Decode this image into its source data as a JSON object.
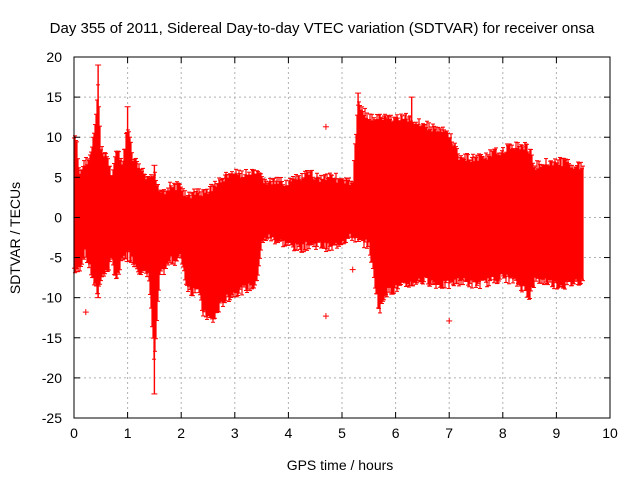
{
  "chart_data": {
    "type": "scatter",
    "title": "Day 355 of 2011, Sidereal Day-to-day VTEC variation (SDTVAR) for receiver onsa",
    "xlabel": "GPS time / hours",
    "ylabel": "SDTVAR / TECUs",
    "xlim": [
      0,
      10
    ],
    "ylim": [
      -25,
      20
    ],
    "xticks": [
      0,
      1,
      2,
      3,
      4,
      5,
      6,
      7,
      8,
      9,
      10
    ],
    "yticks": [
      -25,
      -20,
      -15,
      -10,
      -5,
      0,
      5,
      10,
      15,
      20
    ],
    "grid": true,
    "marker": "+",
    "color": "#ff0000",
    "series": [
      {
        "name": "SDTVAR",
        "envelope_x": [
          0.0,
          0.05,
          0.1,
          0.2,
          0.3,
          0.4,
          0.45,
          0.5,
          0.6,
          0.7,
          0.8,
          0.9,
          1.0,
          1.1,
          1.2,
          1.3,
          1.4,
          1.5,
          1.6,
          1.7,
          1.8,
          1.9,
          2.0,
          2.1,
          2.2,
          2.3,
          2.4,
          2.5,
          2.6,
          2.7,
          2.8,
          2.9,
          3.0,
          3.2,
          3.4,
          3.5,
          3.6,
          3.8,
          4.0,
          4.2,
          4.4,
          4.6,
          4.8,
          5.0,
          5.2,
          5.3,
          5.5,
          5.7,
          5.8,
          6.0,
          6.2,
          6.4,
          6.6,
          6.8,
          7.0,
          7.2,
          7.5,
          7.8,
          8.0,
          8.2,
          8.4,
          8.5,
          8.6,
          8.8,
          9.0,
          9.2,
          9.4,
          9.5
        ],
        "envelope_upper": [
          10.5,
          10.0,
          6.0,
          7.5,
          8.0,
          12.0,
          17.5,
          9.0,
          8.5,
          6.0,
          9.0,
          7.0,
          12.0,
          8.0,
          7.0,
          6.0,
          5.0,
          6.0,
          4.0,
          4.0,
          4.5,
          4.5,
          4.5,
          3.0,
          3.5,
          4.0,
          3.5,
          4.0,
          4.5,
          5.0,
          5.5,
          6.0,
          6.0,
          6.0,
          6.0,
          5.5,
          5.0,
          5.0,
          5.0,
          5.5,
          6.0,
          5.5,
          6.0,
          5.0,
          5.0,
          15.0,
          13.0,
          13.0,
          13.0,
          13.0,
          13.0,
          12.5,
          12.0,
          11.5,
          11.0,
          8.0,
          8.0,
          8.5,
          9.0,
          9.5,
          9.5,
          9.0,
          7.0,
          7.5,
          7.5,
          7.5,
          7.0,
          7.0
        ],
        "envelope_lower": [
          -7.0,
          -7.5,
          -7.0,
          -5.0,
          -7.0,
          -9.5,
          -10.0,
          -8.0,
          -7.5,
          -6.0,
          -8.5,
          -6.0,
          -5.0,
          -6.0,
          -7.0,
          -7.5,
          -8.0,
          -19.0,
          -8.0,
          -7.0,
          -6.0,
          -6.0,
          -5.5,
          -9.0,
          -10.0,
          -9.0,
          -12.5,
          -13.0,
          -13.5,
          -12.0,
          -11.0,
          -10.5,
          -10.0,
          -9.5,
          -9.0,
          -4.0,
          -3.0,
          -3.5,
          -4.0,
          -4.5,
          -4.0,
          -4.0,
          -4.5,
          -3.5,
          -3.0,
          -3.5,
          -4.0,
          -12.5,
          -10.0,
          -9.5,
          -9.0,
          -8.5,
          -8.5,
          -9.0,
          -9.0,
          -8.5,
          -9.0,
          -8.5,
          -8.0,
          -8.5,
          -9.5,
          -10.5,
          -8.5,
          -8.5,
          -9.0,
          -9.0,
          -8.5,
          -8.5
        ],
        "spikes": [
          {
            "x": 0.45,
            "low": -10.0,
            "high": 19.0
          },
          {
            "x": 1.0,
            "low": -5.5,
            "high": 13.8
          },
          {
            "x": 1.5,
            "low": -22.0,
            "high": 6.5
          },
          {
            "x": 5.3,
            "low": -3.0,
            "high": 15.5
          },
          {
            "x": 6.3,
            "low": -8.5,
            "high": 15.0
          }
        ],
        "outliers": [
          [
            0.22,
            -11.8
          ],
          [
            4.7,
            11.3
          ],
          [
            4.7,
            -12.3
          ],
          [
            5.2,
            -6.5
          ],
          [
            7.0,
            -12.9
          ]
        ]
      }
    ]
  }
}
